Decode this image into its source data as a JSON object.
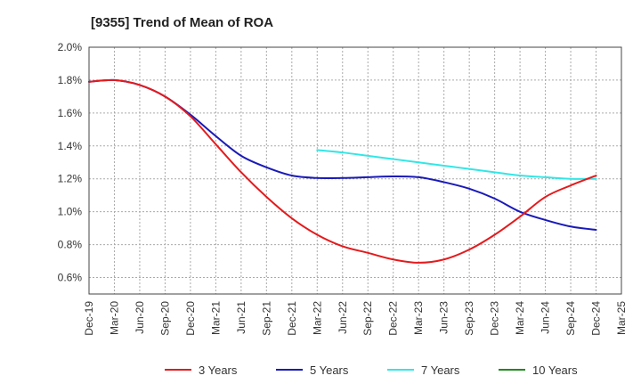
{
  "chart_data": {
    "type": "line",
    "title": "[9355]  Trend of Mean of ROA",
    "xlabel": "",
    "ylabel": "",
    "ylim": [
      0.5,
      2.0
    ],
    "yticks": [
      0.6,
      0.8,
      1.0,
      1.2,
      1.4,
      1.6,
      1.8,
      2.0
    ],
    "ytick_labels": [
      "0.6%",
      "0.8%",
      "1.0%",
      "1.2%",
      "1.4%",
      "1.6%",
      "1.8%",
      "2.0%"
    ],
    "categories": [
      "Dec-19",
      "Mar-20",
      "Jun-20",
      "Sep-20",
      "Dec-20",
      "Mar-21",
      "Jun-21",
      "Sep-21",
      "Dec-21",
      "Mar-22",
      "Jun-22",
      "Sep-22",
      "Dec-22",
      "Mar-23",
      "Jun-23",
      "Sep-23",
      "Dec-23",
      "Mar-24",
      "Jun-24",
      "Sep-24",
      "Dec-24",
      "Mar-25"
    ],
    "grid": true,
    "legend_position": "bottom",
    "series": [
      {
        "name": "3 Years",
        "color": "#e41a1c",
        "values": [
          1.79,
          1.8,
          1.77,
          1.7,
          1.58,
          1.41,
          1.24,
          1.09,
          0.96,
          0.86,
          0.79,
          0.75,
          0.71,
          0.69,
          0.71,
          0.77,
          0.86,
          0.97,
          1.09,
          1.16,
          1.22,
          null
        ]
      },
      {
        "name": "5 Years",
        "color": "#1a1ab8",
        "values": [
          1.79,
          1.8,
          1.77,
          1.7,
          1.59,
          1.46,
          1.34,
          1.27,
          1.22,
          1.205,
          1.205,
          1.21,
          1.215,
          1.21,
          1.18,
          1.14,
          1.08,
          1.0,
          0.95,
          0.91,
          0.89,
          null
        ]
      },
      {
        "name": "7 Years",
        "color": "#33e6e6",
        "values": [
          null,
          null,
          null,
          null,
          null,
          null,
          null,
          null,
          null,
          1.375,
          1.36,
          1.34,
          1.32,
          1.3,
          1.28,
          1.26,
          1.24,
          1.22,
          1.21,
          1.2,
          1.2,
          null
        ]
      },
      {
        "name": "10 Years",
        "color": "#1f8a1f",
        "values": [
          null,
          null,
          null,
          null,
          null,
          null,
          null,
          null,
          null,
          null,
          null,
          null,
          null,
          null,
          null,
          null,
          null,
          null,
          null,
          null,
          null,
          null
        ]
      }
    ]
  }
}
